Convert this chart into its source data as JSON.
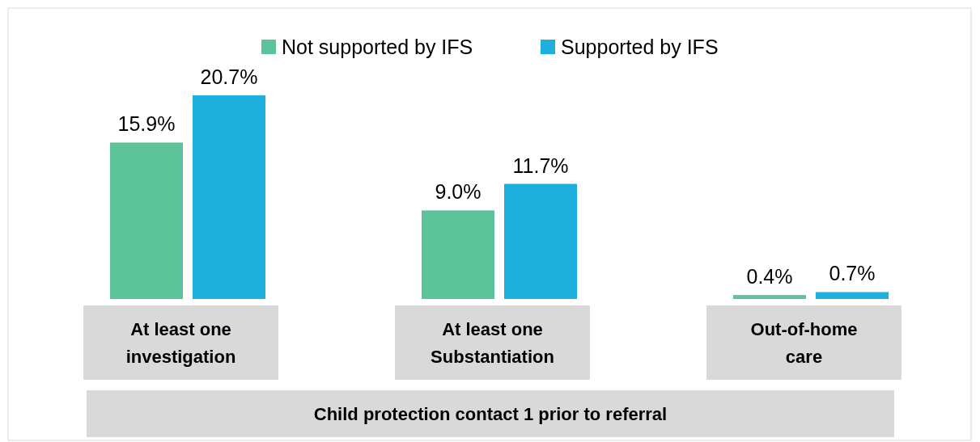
{
  "chart_data": {
    "type": "bar",
    "xlabel": "Child protection contact 1 prior to referral",
    "categories": [
      "At least one investigation",
      "At least one Substantiation",
      "Out-of-home care"
    ],
    "series": [
      {
        "name": "Not supported by IFS",
        "color": "#5cc29a",
        "values": [
          15.9,
          9.0,
          0.4
        ],
        "value_labels": [
          "15.9%",
          "9.0%",
          "0.4%"
        ]
      },
      {
        "name": "Supported by IFS",
        "color": "#1eb0dc",
        "values": [
          20.7,
          11.7,
          0.7
        ],
        "value_labels": [
          "20.7%",
          "11.7%",
          "0.7%"
        ]
      }
    ],
    "legend": "top"
  }
}
